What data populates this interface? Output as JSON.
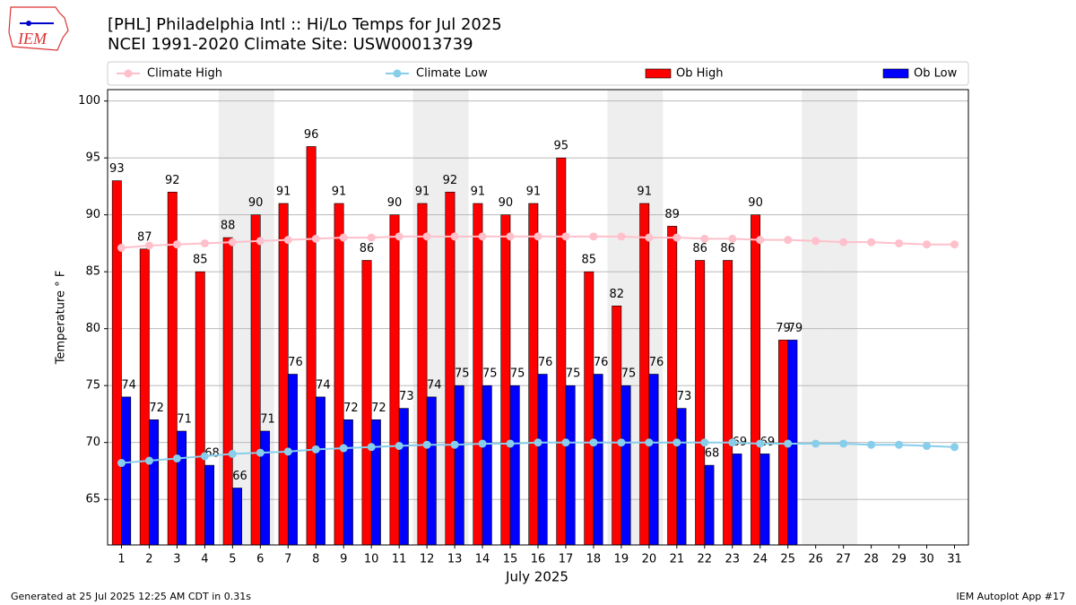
{
  "logo_text": "IEM",
  "footer_left": "Generated at 25 Jul 2025 12:25 AM CDT in 0.31s",
  "footer_right": "IEM Autoplot App #17",
  "chart_data": {
    "type": "bar",
    "title": "[PHL] Philadelphia Intl :: Hi/Lo Temps for Jul 2025",
    "subtitle": "NCEI 1991-2020 Climate Site: USW00013739",
    "x_label": "July 2025",
    "y_label": "Temperature ° F",
    "categories": [
      "1",
      "2",
      "3",
      "4",
      "5",
      "6",
      "7",
      "8",
      "9",
      "10",
      "11",
      "12",
      "13",
      "14",
      "15",
      "16",
      "17",
      "18",
      "19",
      "20",
      "21",
      "22",
      "23",
      "24",
      "25",
      "26",
      "27",
      "28",
      "29",
      "30",
      "31"
    ],
    "ylim": [
      61,
      101
    ],
    "yticks": [
      65,
      70,
      75,
      80,
      85,
      90,
      95,
      100
    ],
    "grid": true,
    "legend": "top",
    "series": [
      {
        "name": "Climate High",
        "kind": "line",
        "color": "#ffc0cb",
        "values": [
          87.1,
          87.3,
          87.4,
          87.5,
          87.6,
          87.7,
          87.8,
          87.9,
          88.0,
          88.0,
          88.1,
          88.1,
          88.1,
          88.1,
          88.1,
          88.1,
          88.1,
          88.1,
          88.1,
          88.0,
          88.0,
          87.9,
          87.9,
          87.8,
          87.8,
          87.7,
          87.6,
          87.6,
          87.5,
          87.4,
          87.4
        ]
      },
      {
        "name": "Climate Low",
        "kind": "line",
        "color": "#87ceeb",
        "values": [
          68.2,
          68.4,
          68.6,
          68.8,
          69.0,
          69.1,
          69.2,
          69.4,
          69.5,
          69.6,
          69.7,
          69.8,
          69.8,
          69.9,
          69.9,
          70.0,
          70.0,
          70.0,
          70.0,
          70.0,
          70.0,
          70.0,
          70.0,
          69.9,
          69.9,
          69.9,
          69.9,
          69.8,
          69.8,
          69.7,
          69.6
        ]
      },
      {
        "name": "Ob High",
        "kind": "bar",
        "color": "#ff0000",
        "values": [
          93,
          87,
          92,
          85,
          88,
          90,
          91,
          96,
          91,
          86,
          90,
          91,
          92,
          91,
          90,
          91,
          95,
          85,
          82,
          91,
          89,
          86,
          86,
          90,
          79,
          null,
          null,
          null,
          null,
          null,
          null
        ]
      },
      {
        "name": "Ob Low",
        "kind": "bar",
        "color": "#0000ff",
        "values": [
          74,
          72,
          71,
          68,
          66,
          71,
          76,
          74,
          72,
          72,
          73,
          74,
          75,
          75,
          75,
          76,
          75,
          76,
          75,
          76,
          73,
          68,
          69,
          69,
          79,
          null,
          null,
          null,
          null,
          null,
          null
        ]
      }
    ]
  }
}
